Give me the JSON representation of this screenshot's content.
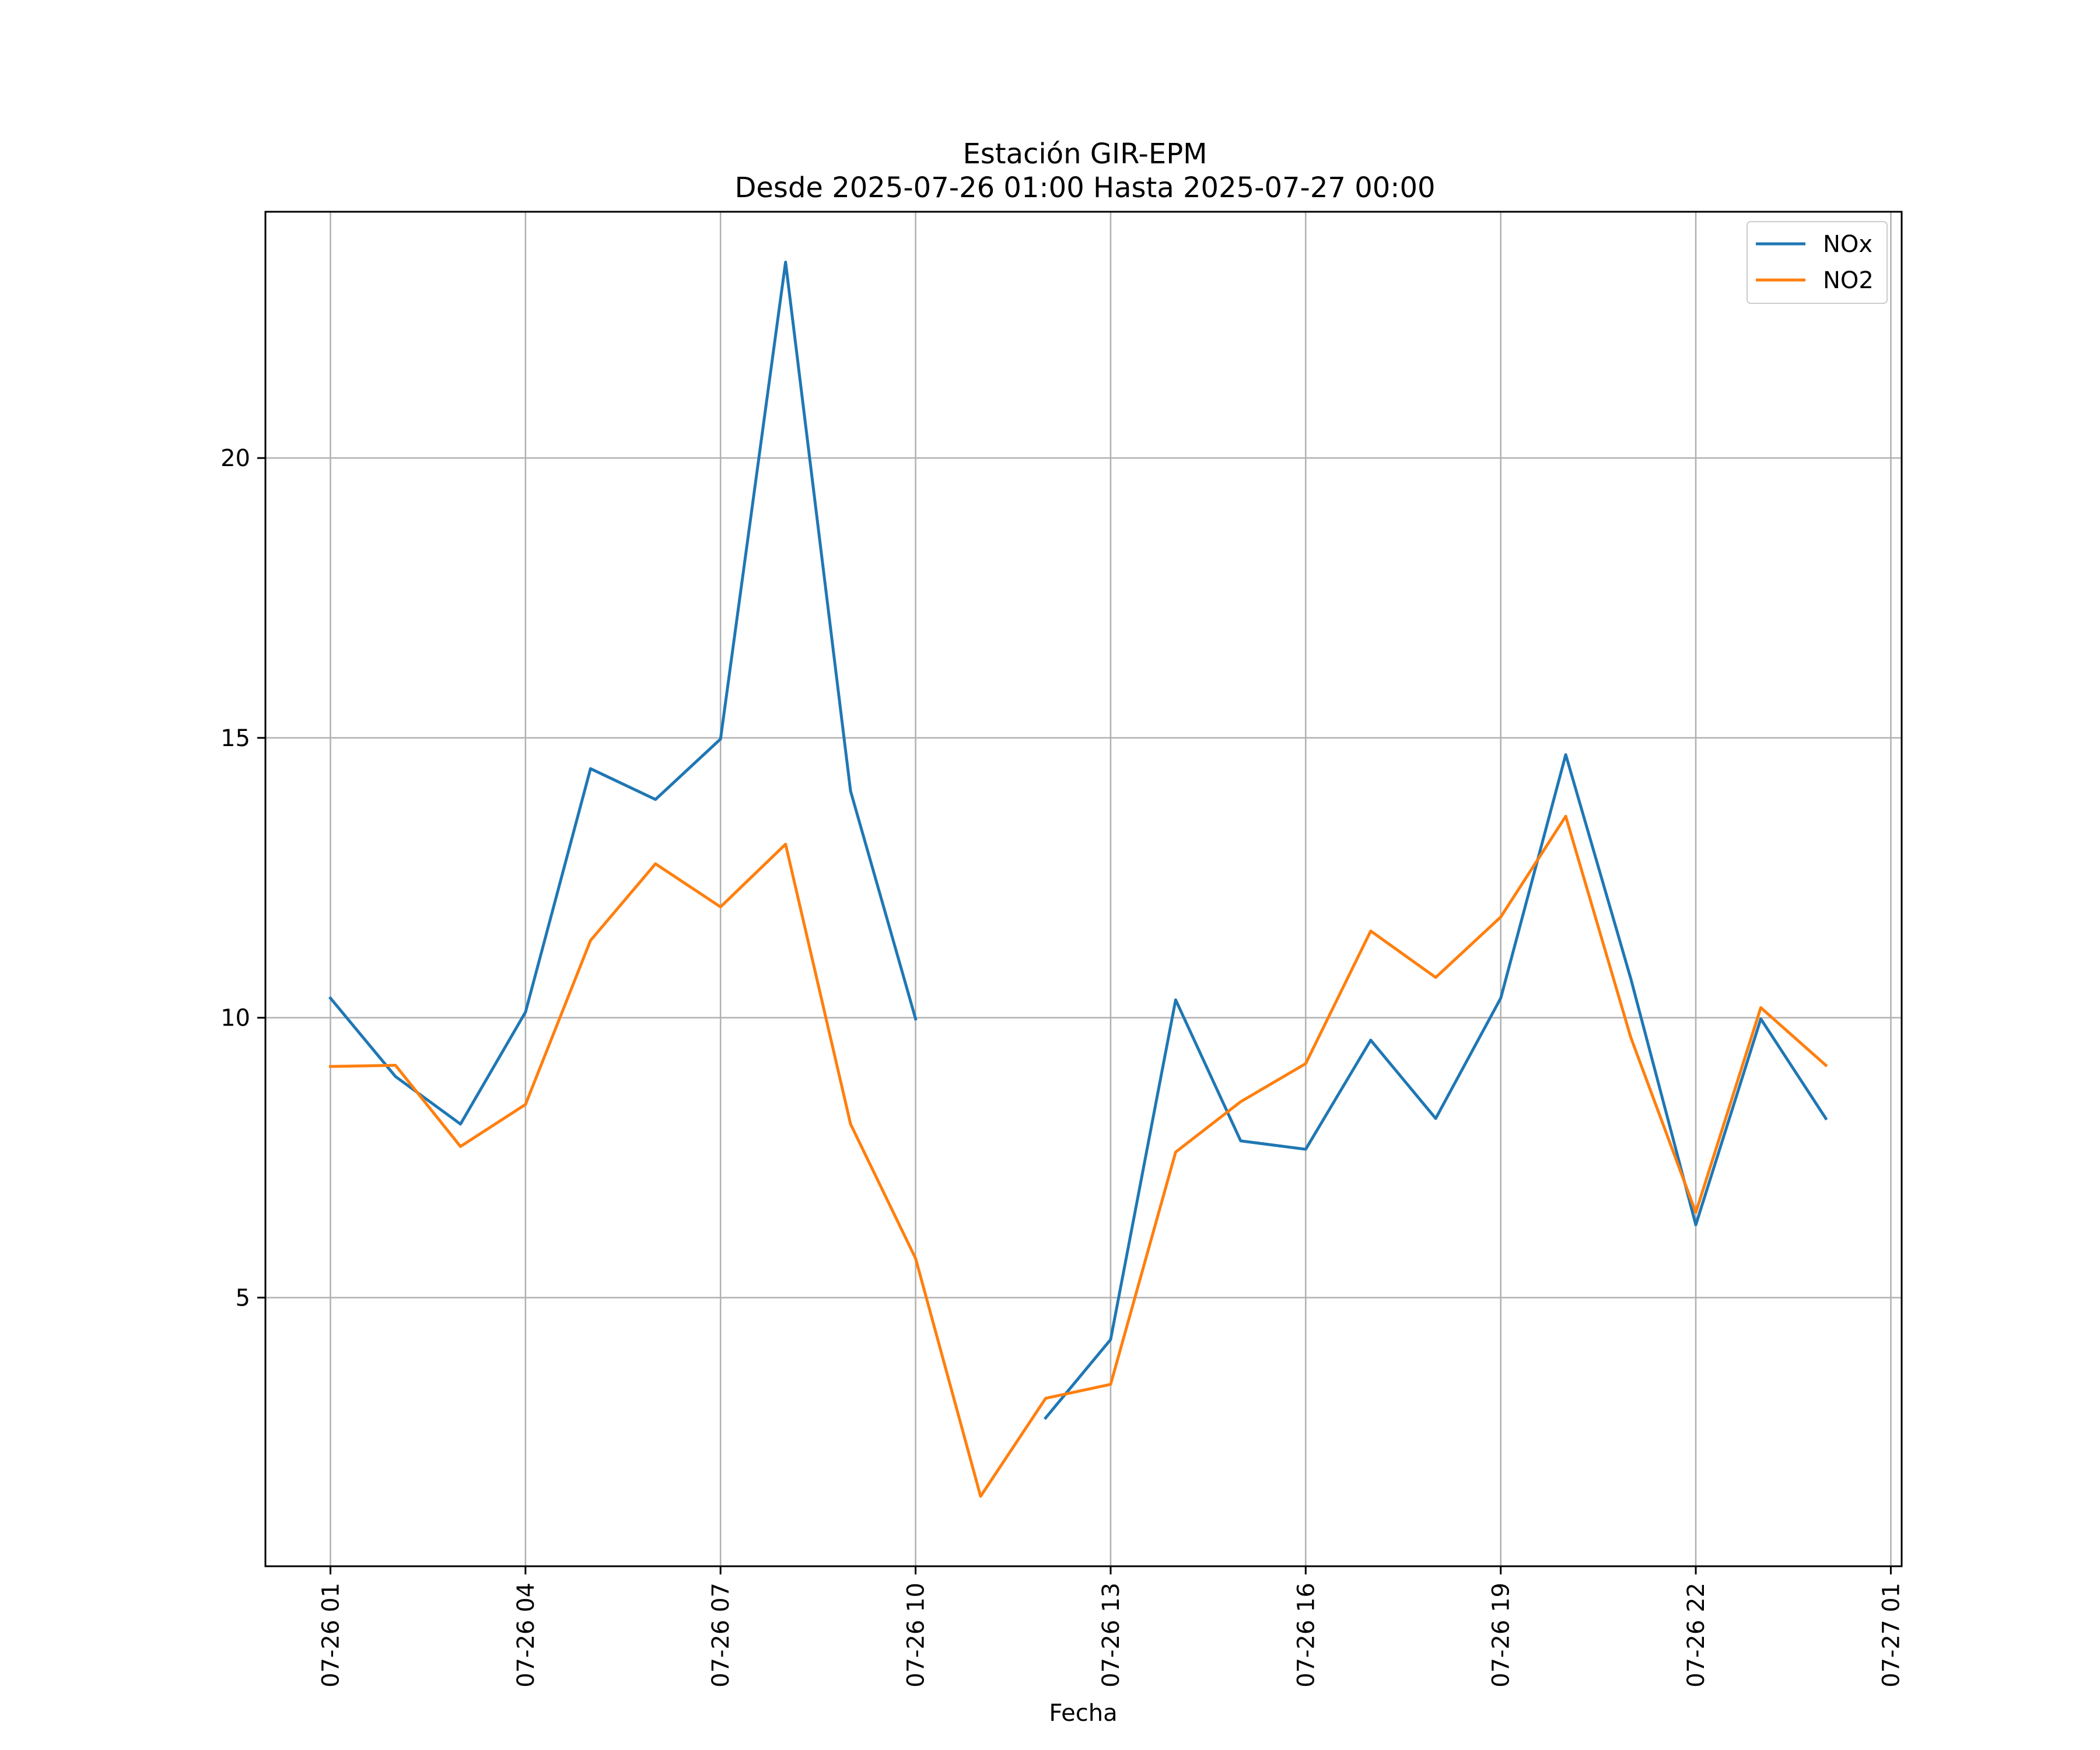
{
  "chart_data": {
    "type": "line",
    "title": "Estación GIR-EPM",
    "subtitle": "Desde 2025-07-26 01:00 Hasta 2025-07-27 00:00",
    "xlabel": "Fecha",
    "ylabel": "",
    "x": [
      "2025-07-26 01:00",
      "2025-07-26 02:00",
      "2025-07-26 03:00",
      "2025-07-26 04:00",
      "2025-07-26 05:00",
      "2025-07-26 06:00",
      "2025-07-26 07:00",
      "2025-07-26 08:00",
      "2025-07-26 09:00",
      "2025-07-26 10:00",
      "2025-07-26 11:00",
      "2025-07-26 12:00",
      "2025-07-26 13:00",
      "2025-07-26 14:00",
      "2025-07-26 15:00",
      "2025-07-26 16:00",
      "2025-07-26 17:00",
      "2025-07-26 18:00",
      "2025-07-26 19:00",
      "2025-07-26 20:00",
      "2025-07-26 21:00",
      "2025-07-26 22:00",
      "2025-07-26 23:00",
      "2025-07-27 00:00"
    ],
    "xlim": [
      "2025-07-26 00:00",
      "2025-07-27 01:10"
    ],
    "ylim": [
      0.2,
      24.4
    ],
    "x_ticks": [
      {
        "x": "2025-07-26 01:00",
        "label": "07-26 01"
      },
      {
        "x": "2025-07-26 04:00",
        "label": "07-26 04"
      },
      {
        "x": "2025-07-26 07:00",
        "label": "07-26 07"
      },
      {
        "x": "2025-07-26 10:00",
        "label": "07-26 10"
      },
      {
        "x": "2025-07-26 13:00",
        "label": "07-26 13"
      },
      {
        "x": "2025-07-26 16:00",
        "label": "07-26 16"
      },
      {
        "x": "2025-07-26 19:00",
        "label": "07-26 19"
      },
      {
        "x": "2025-07-26 22:00",
        "label": "07-26 22"
      },
      {
        "x": "2025-07-27 01:00",
        "label": "07-27 01"
      }
    ],
    "y_ticks": [
      {
        "value": 5,
        "label": "5"
      },
      {
        "value": 10,
        "label": "10"
      },
      {
        "value": 15,
        "label": "15"
      },
      {
        "value": 20,
        "label": "20"
      }
    ],
    "grid": true,
    "legend_position": "top-right",
    "series": [
      {
        "name": "NOx",
        "color": "#1f77b4",
        "values": [
          10.35,
          8.95,
          8.1,
          10.1,
          14.45,
          13.9,
          14.98,
          23.5,
          14.05,
          9.98,
          null,
          2.85,
          4.25,
          10.32,
          7.8,
          7.65,
          9.6,
          8.2,
          10.35,
          14.7,
          10.7,
          6.3,
          9.98,
          8.2
        ]
      },
      {
        "name": "NO2",
        "color": "#ff7f0e",
        "values": [
          9.13,
          9.15,
          7.7,
          8.45,
          11.38,
          12.75,
          11.98,
          13.1,
          8.1,
          5.7,
          1.45,
          3.2,
          3.45,
          7.6,
          8.5,
          9.18,
          11.55,
          10.72,
          11.8,
          13.6,
          9.65,
          6.52,
          10.18,
          9.15
        ]
      }
    ]
  }
}
